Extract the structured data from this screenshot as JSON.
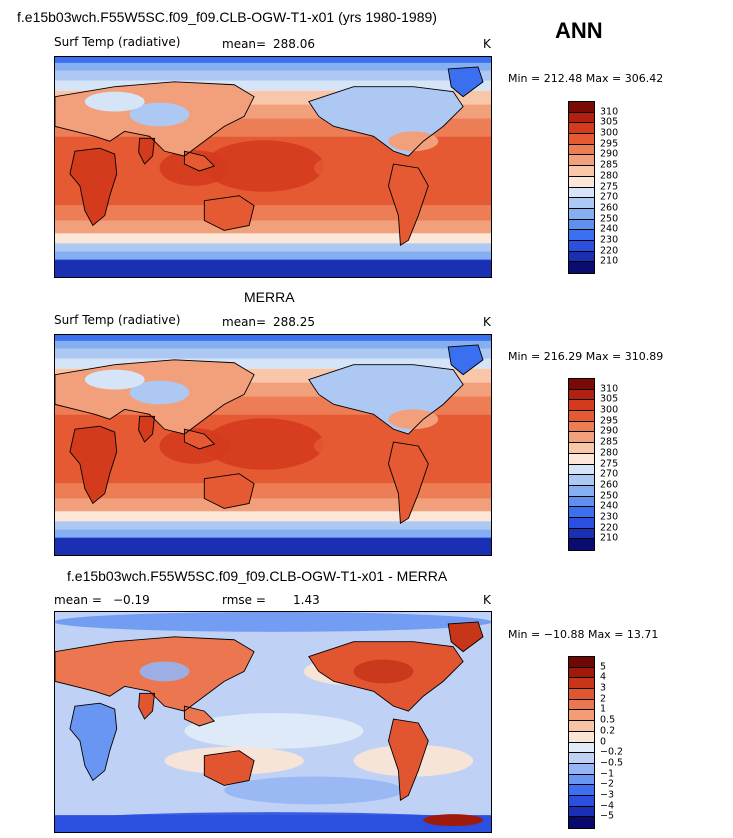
{
  "ann_label": "ANN",
  "colors": {
    "temp_scale": [
      "#0a0c70",
      "#1b2fb2",
      "#2b4fdf",
      "#3a6ff0",
      "#5f90f0",
      "#86aff2",
      "#adc8f3",
      "#d6e4f7",
      "#fbe6d8",
      "#f8c6a9",
      "#f2a07b",
      "#ed7d54",
      "#e55a33",
      "#d43a1c",
      "#b4200f",
      "#7a0a05"
    ],
    "diff_scale": [
      "#08086e",
      "#1a2fb5",
      "#2b4fdf",
      "#3e6ff2",
      "#6a96f3",
      "#95b5f4",
      "#bfd2f6",
      "#e2ecf9",
      "#fbe5d4",
      "#f8c4a6",
      "#f39c76",
      "#ec7650",
      "#e15630",
      "#c8361a",
      "#a01a0c",
      "#6e0804"
    ],
    "accent_land": "#d8472a"
  },
  "chart_data": [
    {
      "type": "heatmap",
      "title": "f.e15b03wch.F55W5SC.f09_f09.CLB-OGW-T1-x01 (yrs 1980-1989)",
      "variable": "Surf Temp (radiative)",
      "mean_label": "mean=",
      "mean": "288.06",
      "units": "K",
      "min_label": "Min =",
      "min": "212.48",
      "max_label": "Max =",
      "max": "306.42",
      "colorbar_ticks": [
        "310",
        "305",
        "300",
        "295",
        "290",
        "285",
        "280",
        "275",
        "270",
        "260",
        "250",
        "240",
        "230",
        "220",
        "210"
      ]
    },
    {
      "type": "heatmap",
      "title": "MERRA",
      "variable": "Surf Temp (radiative)",
      "mean_label": "mean=",
      "mean": "288.25",
      "units": "K",
      "min_label": "Min =",
      "min": "216.29",
      "max_label": "Max =",
      "max": "310.89",
      "colorbar_ticks": [
        "310",
        "305",
        "300",
        "295",
        "290",
        "285",
        "280",
        "275",
        "270",
        "260",
        "250",
        "240",
        "230",
        "220",
        "210"
      ]
    },
    {
      "type": "heatmap",
      "title": "f.e15b03wch.F55W5SC.f09_f09.CLB-OGW-T1-x01 - MERRA",
      "mean_label": "mean =",
      "mean": "−0.19",
      "rmse_label": "rmse =",
      "rmse": "1.43",
      "units": "K",
      "min_label": "Min =",
      "min": "−10.88",
      "max_label": "Max =",
      "max": "13.71",
      "colorbar_ticks": [
        "5",
        "4",
        "3",
        "2",
        "1",
        "0.5",
        "0.2",
        "0",
        "−0.2",
        "−0.5",
        "−1",
        "−2",
        "−3",
        "−4",
        "−5"
      ]
    }
  ]
}
